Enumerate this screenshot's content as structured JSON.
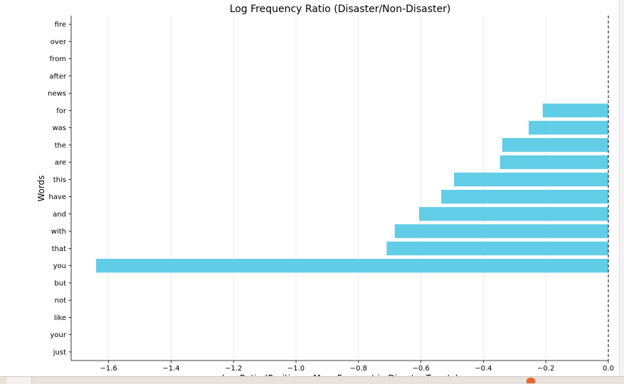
{
  "chart_data": {
    "type": "bar",
    "orientation": "horizontal",
    "title": "Log Frequency Ratio (Disaster/Non-Disaster)",
    "xlabel": "Log Ratio (Positive = More Frequent in Disaster Tweets)",
    "ylabel": "Words",
    "xlim": [
      -1.72,
      0.0
    ],
    "xticks": [
      -1.6,
      -1.4,
      -1.2,
      -1.0,
      -0.8,
      -0.6,
      -0.4,
      -0.2,
      0.0
    ],
    "xtick_labels": [
      "−1.6",
      "−1.4",
      "−1.2",
      "−1.0",
      "−0.8",
      "−0.6",
      "−0.4",
      "−0.2",
      "0.0"
    ],
    "grid": "vertical",
    "reference_line": 0.0,
    "bar_color": "#62cde6",
    "categories": [
      "fire",
      "over",
      "from",
      "after",
      "news",
      "for",
      "was",
      "the",
      "are",
      "this",
      "have",
      "and",
      "with",
      "that",
      "you",
      "but",
      "not",
      "like",
      "your",
      "just"
    ],
    "values": [
      0,
      0,
      0,
      0,
      0,
      -0.21,
      -0.255,
      -0.34,
      -0.347,
      -0.494,
      -0.535,
      -0.606,
      -0.684,
      -0.71,
      -1.64,
      0,
      0,
      0,
      0,
      0
    ]
  }
}
